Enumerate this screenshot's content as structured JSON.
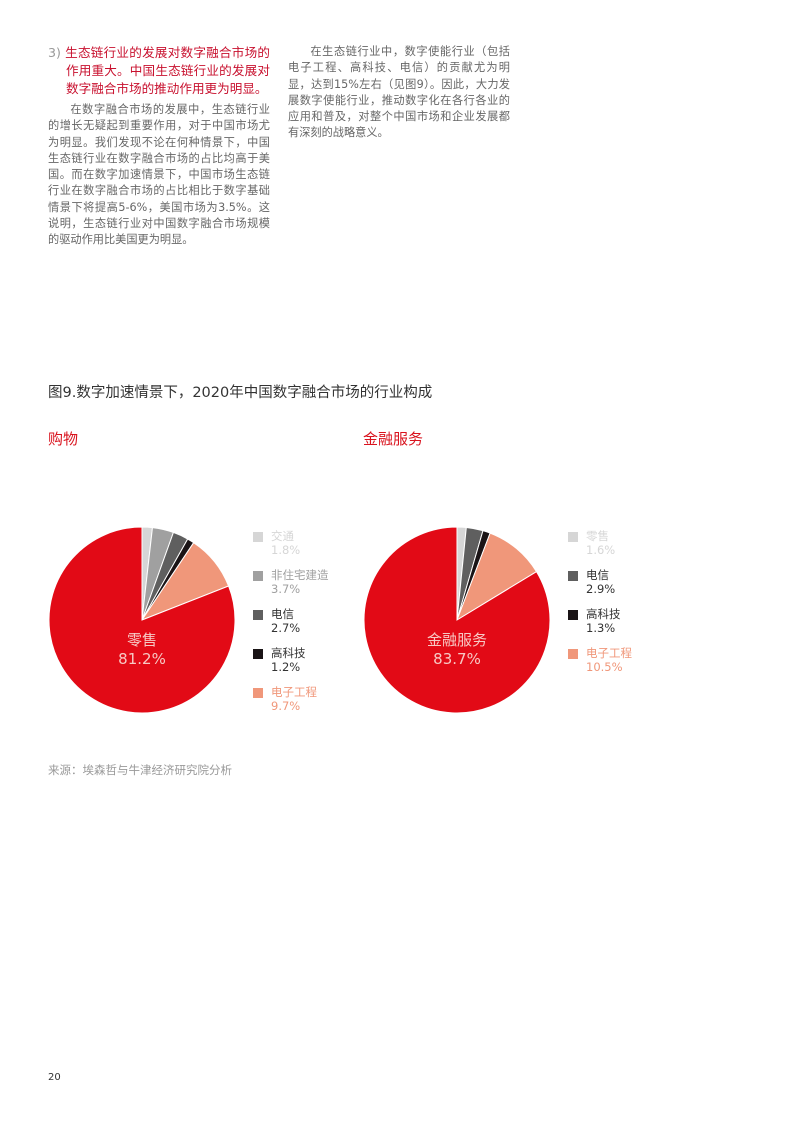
{
  "left_column": {
    "heading_number": "3)",
    "heading": "生态链行业的发展对数字融合市场的作用重大。中国生态链行业的发展对数字融合市场的推动作用更为明显。",
    "paragraph": "在数字融合市场的发展中，生态链行业的增长无疑起到重要作用，对于中国市场尤为明显。我们发现不论在何种情景下，中国生态链行业在数字融合市场的占比均高于美国。而在数字加速情景下，中国市场生态链行业在数字融合市场的占比相比于数字基础情景下将提高5-6%，美国市场为3.5%。这说明，生态链行业对中国数字融合市场规模的驱动作用比美国更为明显。"
  },
  "right_column": {
    "paragraph": "在生态链行业中，数字使能行业（包括电子工程、高科技、电信）的贡献尤为明显，达到15%左右（见图9）。因此，大力发展数字使能行业，推动数字化在各行各业的应用和普及，对整个中国市场和企业发展都有深刻的战略意义。"
  },
  "figure_title": "图9.数字加速情景下，2020年中国数字融合市场的行业构成",
  "chart_data": [
    {
      "type": "pie",
      "title": "购物",
      "main_label": "零售",
      "main_value_label": "81.2%",
      "slices": [
        {
          "name": "零售",
          "value": 81.2,
          "color": "#e20a16"
        },
        {
          "name": "交通",
          "value": 1.8,
          "color": "#d6d6d6",
          "label": "1.8%"
        },
        {
          "name": "非住宅建造",
          "value": 3.7,
          "color": "#a0a0a0",
          "label": "3.7%"
        },
        {
          "name": "电信",
          "value": 2.7,
          "color": "#5f5f5f",
          "label": "2.7%"
        },
        {
          "name": "高科技",
          "value": 1.2,
          "color": "#1a1416",
          "label": "1.2%"
        },
        {
          "name": "电子工程",
          "value": 9.7,
          "color": "#f0977a",
          "label": "9.7%"
        }
      ]
    },
    {
      "type": "pie",
      "title": "金融服务",
      "main_label": "金融服务",
      "main_value_label": "83.7%",
      "slices": [
        {
          "name": "金融服务",
          "value": 83.7,
          "color": "#e20a16"
        },
        {
          "name": "零售",
          "value": 1.6,
          "color": "#d6d6d6",
          "label": "1.6%"
        },
        {
          "name": "电信",
          "value": 2.9,
          "color": "#5f5f5f",
          "label": "2.9%"
        },
        {
          "name": "高科技",
          "value": 1.3,
          "color": "#1a1416",
          "label": "1.3%"
        },
        {
          "name": "电子工程",
          "value": 10.5,
          "color": "#f0977a",
          "label": "10.5%"
        }
      ]
    }
  ],
  "source": "来源：埃森哲与牛津经济研究院分析",
  "page_number": "20"
}
